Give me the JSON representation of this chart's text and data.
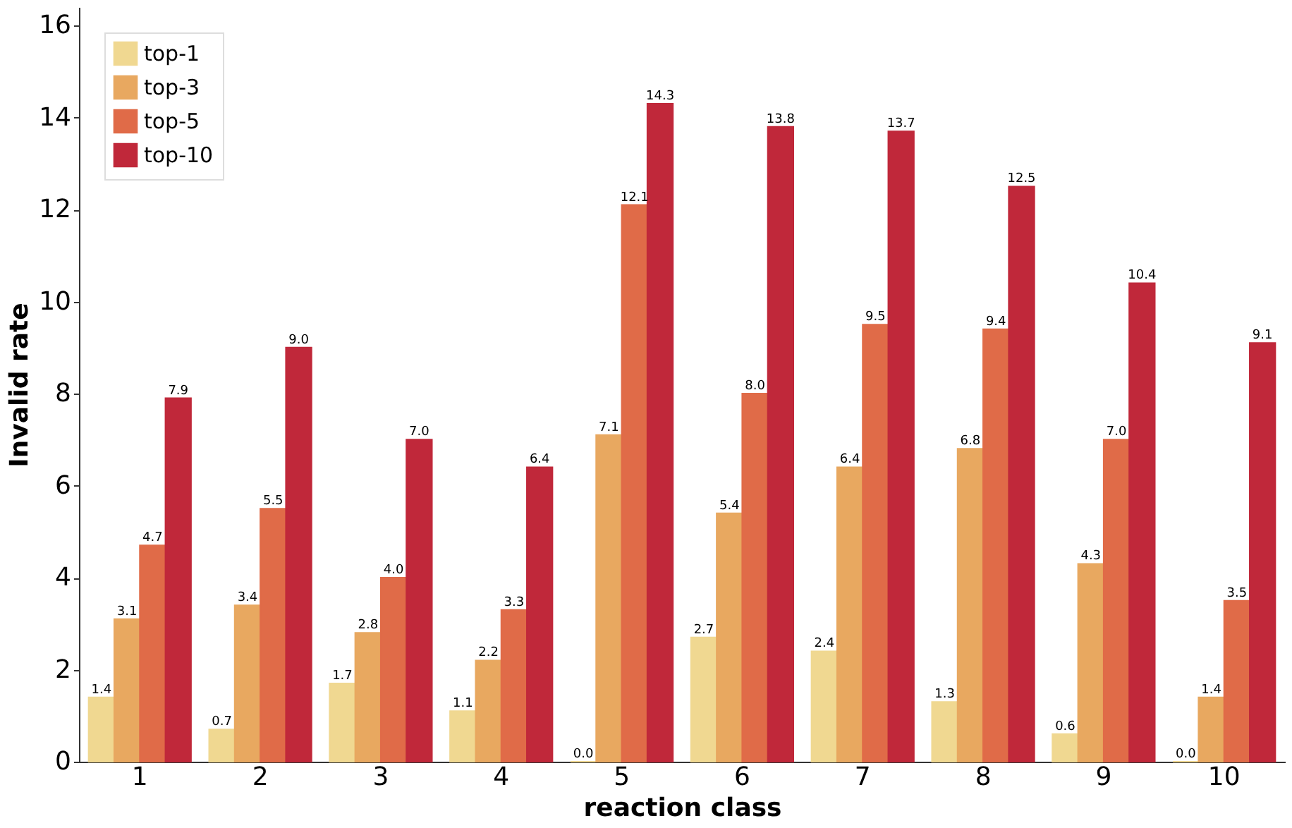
{
  "chart_data": {
    "type": "bar",
    "xlabel": "reaction class",
    "ylabel": "Invalid rate",
    "categories": [
      "1",
      "2",
      "3",
      "4",
      "5",
      "6",
      "7",
      "8",
      "9",
      "10"
    ],
    "series": [
      {
        "name": "top-1",
        "color": "#f0d891",
        "values": [
          1.4,
          0.7,
          1.7,
          1.1,
          0.0,
          2.7,
          2.4,
          1.3,
          0.6,
          0.0
        ],
        "value_labels": [
          "1.4",
          "0.7",
          "1.7",
          "1.1",
          "0.0",
          "2.7",
          "2.4",
          "1.3",
          "0.6",
          "0.0"
        ]
      },
      {
        "name": "top-3",
        "color": "#e8a860",
        "values": [
          3.1,
          3.4,
          2.8,
          2.2,
          7.1,
          5.4,
          6.4,
          6.8,
          4.3,
          1.4
        ],
        "value_labels": [
          "3.1",
          "3.4",
          "2.8",
          "2.2",
          "7.1",
          "5.4",
          "6.4",
          "6.8",
          "4.3",
          "1.4"
        ]
      },
      {
        "name": "top-5",
        "color": "#e06b48",
        "values": [
          4.7,
          5.5,
          4.0,
          3.3,
          12.1,
          8.0,
          9.5,
          9.4,
          7.0,
          3.5
        ],
        "value_labels": [
          "4.7",
          "5.5",
          "4.0",
          "3.3",
          "12.1",
          "8.0",
          "9.5",
          "9.4",
          "7.0",
          "3.5"
        ]
      },
      {
        "name": "top-10",
        "color": "#c0283a",
        "values": [
          7.9,
          9.0,
          7.0,
          6.4,
          14.3,
          13.8,
          13.7,
          12.5,
          10.4,
          9.1
        ],
        "value_labels": [
          "7.9",
          "9.0",
          "7.0",
          "6.4",
          "14.3",
          "13.8",
          "13.7",
          "12.5",
          "10.4",
          "9.1"
        ]
      }
    ],
    "ylim": [
      0,
      16.4
    ],
    "yticks": [
      0,
      2,
      4,
      6,
      8,
      10,
      12,
      14,
      16
    ],
    "grid": false,
    "legend": "top left"
  }
}
